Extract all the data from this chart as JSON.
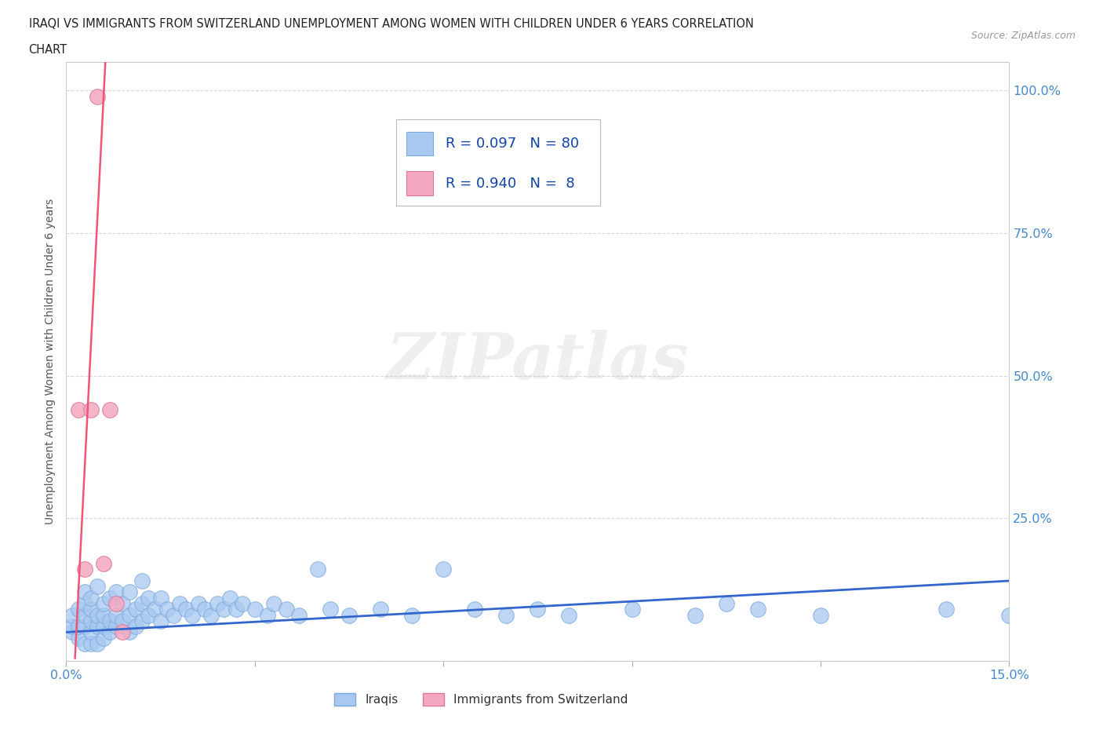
{
  "title_line1": "IRAQI VS IMMIGRANTS FROM SWITZERLAND UNEMPLOYMENT AMONG WOMEN WITH CHILDREN UNDER 6 YEARS CORRELATION",
  "title_line2": "CHART",
  "source": "Source: ZipAtlas.com",
  "ylabel": "Unemployment Among Women with Children Under 6 years",
  "xlim": [
    0.0,
    0.15
  ],
  "ylim": [
    0.0,
    1.05
  ],
  "iraqis_color": "#a8c8f0",
  "iraqis_edge_color": "#7aaadd",
  "swiss_color": "#f4a8c0",
  "swiss_edge_color": "#dd7799",
  "trendline_iraqis_color": "#3366cc",
  "trendline_swiss_color": "#ee5577",
  "R_iraqis": 0.097,
  "N_iraqis": 80,
  "R_swiss": 0.94,
  "N_swiss": 8,
  "iraqis_x": [
    0.001,
    0.001,
    0.001,
    0.002,
    0.002,
    0.002,
    0.003,
    0.003,
    0.003,
    0.003,
    0.003,
    0.004,
    0.004,
    0.004,
    0.004,
    0.004,
    0.005,
    0.005,
    0.005,
    0.005,
    0.006,
    0.006,
    0.006,
    0.006,
    0.007,
    0.007,
    0.007,
    0.008,
    0.008,
    0.008,
    0.009,
    0.009,
    0.01,
    0.01,
    0.01,
    0.011,
    0.011,
    0.012,
    0.012,
    0.012,
    0.013,
    0.013,
    0.014,
    0.015,
    0.015,
    0.016,
    0.017,
    0.018,
    0.019,
    0.02,
    0.021,
    0.022,
    0.023,
    0.024,
    0.025,
    0.026,
    0.027,
    0.028,
    0.03,
    0.032,
    0.033,
    0.035,
    0.037,
    0.04,
    0.042,
    0.045,
    0.05,
    0.055,
    0.06,
    0.065,
    0.07,
    0.075,
    0.08,
    0.09,
    0.1,
    0.105,
    0.11,
    0.12,
    0.14,
    0.15
  ],
  "iraqis_y": [
    0.05,
    0.06,
    0.08,
    0.04,
    0.06,
    0.09,
    0.03,
    0.06,
    0.08,
    0.1,
    0.12,
    0.03,
    0.05,
    0.07,
    0.09,
    0.11,
    0.03,
    0.06,
    0.08,
    0.13,
    0.04,
    0.06,
    0.08,
    0.1,
    0.05,
    0.07,
    0.11,
    0.06,
    0.08,
    0.12,
    0.07,
    0.1,
    0.05,
    0.08,
    0.12,
    0.06,
    0.09,
    0.07,
    0.1,
    0.14,
    0.08,
    0.11,
    0.09,
    0.07,
    0.11,
    0.09,
    0.08,
    0.1,
    0.09,
    0.08,
    0.1,
    0.09,
    0.08,
    0.1,
    0.09,
    0.11,
    0.09,
    0.1,
    0.09,
    0.08,
    0.1,
    0.09,
    0.08,
    0.16,
    0.09,
    0.08,
    0.09,
    0.08,
    0.16,
    0.09,
    0.08,
    0.09,
    0.08,
    0.09,
    0.08,
    0.1,
    0.09,
    0.08,
    0.09,
    0.08
  ],
  "swiss_x": [
    0.002,
    0.003,
    0.004,
    0.005,
    0.006,
    0.007,
    0.008,
    0.009
  ],
  "swiss_y": [
    0.44,
    0.16,
    0.44,
    0.99,
    0.17,
    0.44,
    0.1,
    0.05
  ],
  "watermark": "ZIPatlas",
  "background_color": "#ffffff",
  "grid_color": "#d0d8e8",
  "title_color": "#222222",
  "axis_label_color": "#555555",
  "tick_label_color": "#4488cc",
  "legend_color": "#1144aa"
}
